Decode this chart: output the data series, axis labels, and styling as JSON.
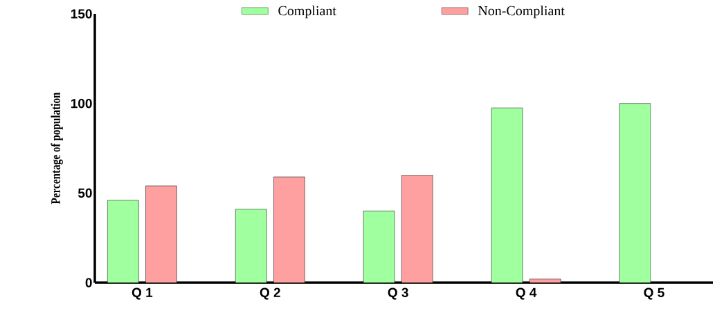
{
  "chart_data": {
    "type": "bar",
    "ylabel": "Percentage of population",
    "categories": [
      "Q 1",
      "Q 2",
      "Q 3",
      "Q 4",
      "Q 5"
    ],
    "series": [
      {
        "name": "Compliant",
        "color": "#a0ff9f",
        "values": [
          46,
          41,
          40,
          97.5,
          100
        ]
      },
      {
        "name": "Non-Compliant",
        "color": "#ffa0a0",
        "values": [
          54,
          59,
          60,
          2,
          null
        ]
      }
    ],
    "ylim": [
      0,
      150
    ],
    "yticks": [
      0,
      50,
      100,
      150
    ],
    "grid": false,
    "legend": "top"
  }
}
